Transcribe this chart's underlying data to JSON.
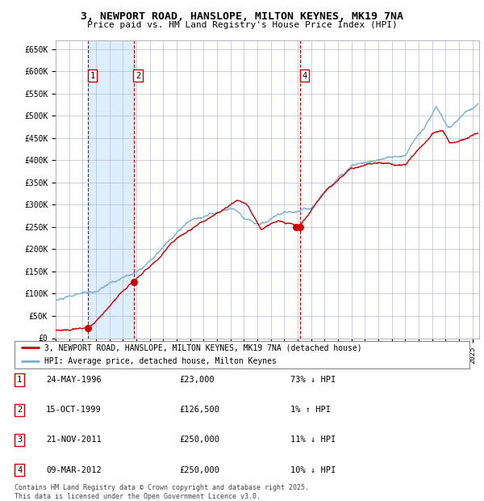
{
  "title": "3, NEWPORT ROAD, HANSLOPE, MILTON KEYNES, MK19 7NA",
  "subtitle": "Price paid vs. HM Land Registry's House Price Index (HPI)",
  "xlim": [
    1994.0,
    2025.5
  ],
  "ylim": [
    0,
    670000
  ],
  "yticks": [
    0,
    50000,
    100000,
    150000,
    200000,
    250000,
    300000,
    350000,
    400000,
    450000,
    500000,
    550000,
    600000,
    650000
  ],
  "ytick_labels": [
    "£0",
    "£50K",
    "£100K",
    "£150K",
    "£200K",
    "£250K",
    "£300K",
    "£350K",
    "£400K",
    "£450K",
    "£500K",
    "£550K",
    "£600K",
    "£650K"
  ],
  "sale_dates": [
    1996.39,
    1999.79,
    2011.89,
    2012.18
  ],
  "sale_prices": [
    23000,
    126500,
    250000,
    250000
  ],
  "sale_labels": [
    "1",
    "2",
    "3",
    "4"
  ],
  "vline_dates": [
    1996.39,
    1999.79,
    2012.18
  ],
  "shade_start": 1996.39,
  "shade_end": 1999.79,
  "red_line_color": "#cc0000",
  "blue_line_color": "#7ab0d4",
  "shade_color": "#ddeeff",
  "vline_color": "#cc0000",
  "grid_color": "#aaaacc",
  "background_color": "#ffffff",
  "legend_entries": [
    "3, NEWPORT ROAD, HANSLOPE, MILTON KEYNES, MK19 7NA (detached house)",
    "HPI: Average price, detached house, Milton Keynes"
  ],
  "table_data": [
    [
      "1",
      "24-MAY-1996",
      "£23,000",
      "73% ↓ HPI"
    ],
    [
      "2",
      "15-OCT-1999",
      "£126,500",
      "1% ↑ HPI"
    ],
    [
      "3",
      "21-NOV-2011",
      "£250,000",
      "11% ↓ HPI"
    ],
    [
      "4",
      "09-MAR-2012",
      "£250,000",
      "10% ↓ HPI"
    ]
  ],
  "footnote": "Contains HM Land Registry data © Crown copyright and database right 2025.\nThis data is licensed under the Open Government Licence v3.0."
}
